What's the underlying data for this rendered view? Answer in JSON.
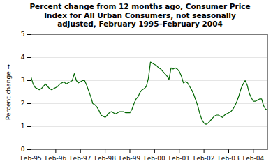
{
  "chart_data": {
    "type": "line",
    "title": "Percent change from 12 months ago, Consumer Price\nIndex for All Urban Consumers, not seasonally\nadjusted, February 1995–February 2004",
    "y_label": "Percent change",
    "categories": [
      "Feb-95",
      null,
      null,
      null,
      null,
      null,
      null,
      null,
      null,
      null,
      null,
      null,
      "Feb-96",
      null,
      null,
      null,
      null,
      null,
      null,
      null,
      null,
      null,
      null,
      null,
      "Feb-97",
      null,
      null,
      null,
      null,
      null,
      null,
      null,
      null,
      null,
      null,
      null,
      "Feb-98",
      null,
      null,
      null,
      null,
      null,
      null,
      null,
      null,
      null,
      null,
      null,
      "Feb-99",
      null,
      null,
      null,
      null,
      null,
      null,
      null,
      null,
      null,
      null,
      null,
      "Feb-00",
      null,
      null,
      null,
      null,
      null,
      null,
      null,
      null,
      null,
      null,
      null,
      "Feb-01",
      null,
      null,
      null,
      null,
      null,
      null,
      null,
      null,
      null,
      null,
      null,
      "Feb-02",
      null,
      null,
      null,
      null,
      null,
      null,
      null,
      null,
      null,
      null,
      null,
      "Feb-03",
      null,
      null,
      null,
      null,
      null,
      null,
      null,
      null,
      null,
      null,
      null,
      "Feb-04",
      null,
      null,
      null,
      null,
      null,
      null,
      null
    ],
    "values": [
      3.15,
      2.85,
      2.7,
      2.65,
      2.6,
      2.65,
      2.75,
      2.85,
      2.75,
      2.65,
      2.6,
      2.65,
      2.7,
      2.75,
      2.85,
      2.9,
      2.95,
      2.85,
      2.9,
      2.95,
      3.0,
      3.3,
      3.0,
      2.9,
      2.95,
      3.0,
      3.0,
      2.8,
      2.55,
      2.3,
      2.0,
      1.95,
      1.85,
      1.7,
      1.5,
      1.45,
      1.4,
      1.5,
      1.6,
      1.65,
      1.6,
      1.55,
      1.6,
      1.65,
      1.65,
      1.65,
      1.6,
      1.6,
      1.6,
      1.75,
      2.0,
      2.2,
      2.3,
      2.5,
      2.6,
      2.65,
      2.75,
      3.1,
      3.8,
      3.75,
      3.7,
      3.65,
      3.55,
      3.5,
      3.4,
      3.3,
      3.2,
      3.05,
      3.55,
      3.5,
      3.55,
      3.5,
      3.4,
      3.2,
      2.9,
      2.95,
      2.9,
      2.75,
      2.6,
      2.4,
      2.15,
      1.9,
      1.55,
      1.3,
      1.15,
      1.1,
      1.15,
      1.25,
      1.35,
      1.45,
      1.5,
      1.5,
      1.45,
      1.4,
      1.5,
      1.55,
      1.6,
      1.65,
      1.75,
      1.9,
      2.1,
      2.35,
      2.65,
      2.85,
      3.0,
      2.8,
      2.45,
      2.25,
      2.1,
      2.1,
      2.15,
      2.2,
      2.2,
      1.9,
      1.75,
      1.75
    ],
    "color": "#006600",
    "ylim": [
      0,
      5
    ],
    "yticks": [
      0,
      1,
      2,
      3,
      4,
      5
    ],
    "grid": true
  }
}
